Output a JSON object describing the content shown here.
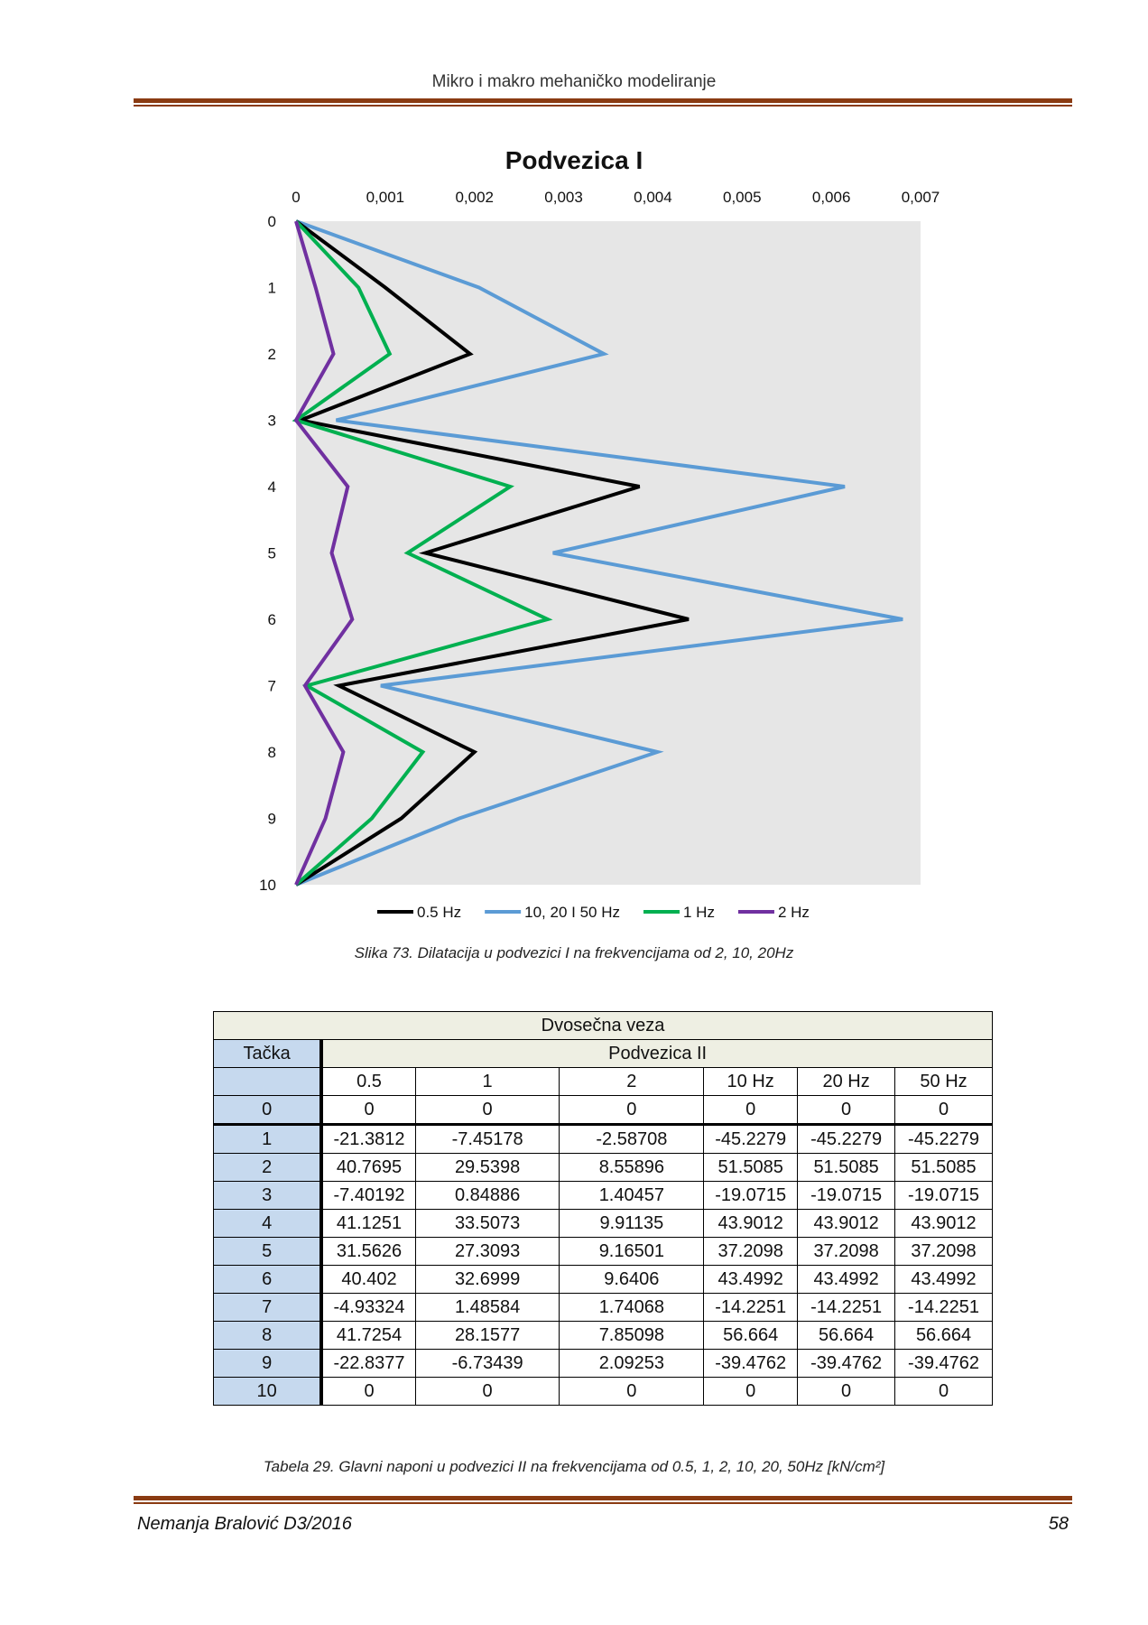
{
  "header": {
    "title": "Mikro i makro mehaničko modeliranje"
  },
  "chart_data": {
    "type": "line",
    "title": "Podvezica I",
    "x_ticks": [
      "0",
      "0,001",
      "0,002",
      "0,003",
      "0,004",
      "0,005",
      "0,006",
      "0,007"
    ],
    "xlim": [
      0,
      0.007
    ],
    "y_ticks": [
      "0",
      "1",
      "2",
      "3",
      "4",
      "5",
      "6",
      "7",
      "8",
      "9",
      "10"
    ],
    "ylim": [
      0,
      10
    ],
    "y_inverted": true,
    "x_axis_position": "top",
    "legend_position": "bottom",
    "plot_background": "#e6e6e6",
    "y": [
      0,
      1,
      2,
      3,
      4,
      5,
      6,
      7,
      8,
      9,
      10
    ],
    "series": [
      {
        "name": "0.5 Hz",
        "color": "#000000",
        "x": [
          0,
          0.001,
          0.00195,
          5e-05,
          0.00385,
          0.00145,
          0.0044,
          0.00048,
          0.002,
          0.00118,
          0
        ]
      },
      {
        "name": "10, 20 I 50 Hz",
        "color": "#5b9bd5",
        "x": [
          0,
          0.00205,
          0.00345,
          0.00045,
          0.00615,
          0.00288,
          0.0068,
          0.00095,
          0.00405,
          0.00183,
          0
        ]
      },
      {
        "name": "1 Hz",
        "color": "#00b050",
        "x": [
          0,
          0.0007,
          0.00105,
          0,
          0.0024,
          0.00125,
          0.00282,
          0.00012,
          0.00142,
          0.00085,
          0
        ]
      },
      {
        "name": "2 Hz",
        "color": "#7030a0",
        "x": [
          0,
          0.00022,
          0.00042,
          0,
          0.00058,
          0.0004,
          0.00063,
          0.0001,
          0.00053,
          0.00033,
          0
        ]
      }
    ]
  },
  "figure_caption": "Slika 73. Dilatacija u podvezici I na frekvencijama od 2, 10, 20Hz",
  "table": {
    "title": "Dvosečna veza",
    "row_header": "Tačka",
    "section": "Podvezica II",
    "columns": [
      "0.5",
      "1",
      "2",
      "10 Hz",
      "20 Hz",
      "50 Hz"
    ],
    "rows": [
      {
        "point": "0",
        "values": [
          "0",
          "0",
          "0",
          "0",
          "0",
          "0"
        ]
      },
      {
        "point": "1",
        "values": [
          "-21.3812",
          "-7.45178",
          "-2.58708",
          "-45.2279",
          "-45.2279",
          "-45.2279"
        ]
      },
      {
        "point": "2",
        "values": [
          "40.7695",
          "29.5398",
          "8.55896",
          "51.5085",
          "51.5085",
          "51.5085"
        ]
      },
      {
        "point": "3",
        "values": [
          "-7.40192",
          "0.84886",
          "1.40457",
          "-19.0715",
          "-19.0715",
          "-19.0715"
        ]
      },
      {
        "point": "4",
        "values": [
          "41.1251",
          "33.5073",
          "9.91135",
          "43.9012",
          "43.9012",
          "43.9012"
        ]
      },
      {
        "point": "5",
        "values": [
          "31.5626",
          "27.3093",
          "9.16501",
          "37.2098",
          "37.2098",
          "37.2098"
        ]
      },
      {
        "point": "6",
        "values": [
          "40.402",
          "32.6999",
          "9.6406",
          "43.4992",
          "43.4992",
          "43.4992"
        ]
      },
      {
        "point": "7",
        "values": [
          "-4.93324",
          "1.48584",
          "1.74068",
          "-14.2251",
          "-14.2251",
          "-14.2251"
        ]
      },
      {
        "point": "8",
        "values": [
          "41.7254",
          "28.1577",
          "7.85098",
          "56.664",
          "56.664",
          "56.664"
        ]
      },
      {
        "point": "9",
        "values": [
          "-22.8377",
          "-6.73439",
          "2.09253",
          "-39.4762",
          "-39.4762",
          "-39.4762"
        ]
      },
      {
        "point": "10",
        "values": [
          "0",
          "0",
          "0",
          "0",
          "0",
          "0"
        ]
      }
    ]
  },
  "table_caption": "Tabela 29. Glavni naponi u podvezici II na frekvencijama od 0.5, 1, 2, 10, 20, 50Hz  [kN/cm²]",
  "footer": {
    "author": "Nemanja Bralović D3/2016",
    "page": "58"
  }
}
